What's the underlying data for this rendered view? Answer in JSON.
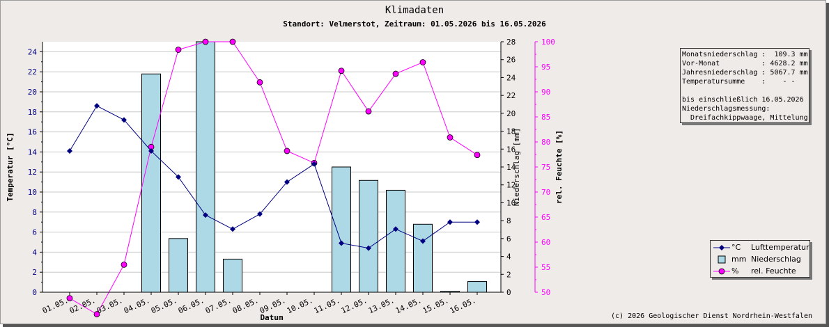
{
  "title": "Klimadaten",
  "subtitle": "Standort: Velmerstot, Zeitraum: 01.05.2026 bis 16.05.2026",
  "copyright": "(c) 2026 Geologischer Dienst Nordrhein-Westfalen",
  "info": {
    "line1": "Monatsniederschlag :  109.3 mm",
    "line2": "Vor-Monat          : 4628.2 mm",
    "line3": "Jahresniederschlag : 5067.7 mm",
    "line4": "Temperatursumme    :    - -",
    "line5": "bis einschließlich 16.05.2026",
    "line6": "Niederschlagsmessung:",
    "line7": "  Dreifachkippwaage, Mittelung"
  },
  "legend": [
    {
      "unit": "°C",
      "name": "Lufttemperatur",
      "color": "#000080"
    },
    {
      "unit": "mm",
      "name": "Niederschlag",
      "color": "#add8e6"
    },
    {
      "unit": "%",
      "name": "rel. Feuchte",
      "color": "#ff00ff"
    }
  ],
  "chart_data": {
    "type": "bar",
    "xlabel": "Datum",
    "categories": [
      "01.05.",
      "02.05.",
      "03.05.",
      "04.05.",
      "05.05.",
      "06.05.",
      "07.05.",
      "08.05.",
      "09.05.",
      "10.05.",
      "11.05.",
      "12.05.",
      "13.05.",
      "14.05.",
      "15.05.",
      "16.05."
    ],
    "axes": {
      "temperature": {
        "label": "Temperatur [°C]",
        "range": [
          0,
          25
        ],
        "ticks": [
          0,
          2,
          4,
          6,
          8,
          10,
          12,
          14,
          16,
          18,
          20,
          22,
          24
        ],
        "color": "#000080"
      },
      "precipitation": {
        "label": "Niederschlag [mm]",
        "range": [
          0,
          28
        ],
        "ticks": [
          0,
          2,
          4,
          6,
          8,
          10,
          12,
          14,
          16,
          18,
          20,
          22,
          24,
          26,
          28
        ],
        "color": "#000000"
      },
      "humidity": {
        "label": "rel. Feuchte [%]",
        "range": [
          50,
          100
        ],
        "ticks": [
          50,
          55,
          60,
          65,
          70,
          75,
          80,
          85,
          90,
          95,
          100
        ],
        "color": "#ff00ff"
      }
    },
    "series": [
      {
        "name": "Lufttemperatur",
        "unit": "°C",
        "type": "line",
        "axis": "temperature",
        "color": "#000080",
        "values": [
          14.1,
          18.6,
          17.2,
          14.1,
          11.5,
          7.7,
          6.3,
          7.8,
          11.0,
          12.8,
          4.9,
          4.4,
          6.3,
          5.1,
          7.0,
          7.0
        ]
      },
      {
        "name": "Niederschlag",
        "unit": "mm",
        "type": "bar",
        "axis": "precipitation",
        "color": "#add8e6",
        "values": [
          0,
          0,
          0,
          24.4,
          6.0,
          28.0,
          3.7,
          0,
          0,
          0,
          14.0,
          12.5,
          11.4,
          7.6,
          0.1,
          1.2
        ]
      },
      {
        "name": "rel. Feuchte",
        "unit": "%",
        "type": "line",
        "axis": "humidity",
        "color": "#ff00ff",
        "values": [
          48.8,
          45.6,
          55.5,
          79.0,
          98.4,
          100.0,
          100.0,
          91.9,
          78.2,
          75.8,
          94.2,
          86.1,
          93.6,
          95.9,
          80.9,
          77.4
        ]
      }
    ]
  }
}
